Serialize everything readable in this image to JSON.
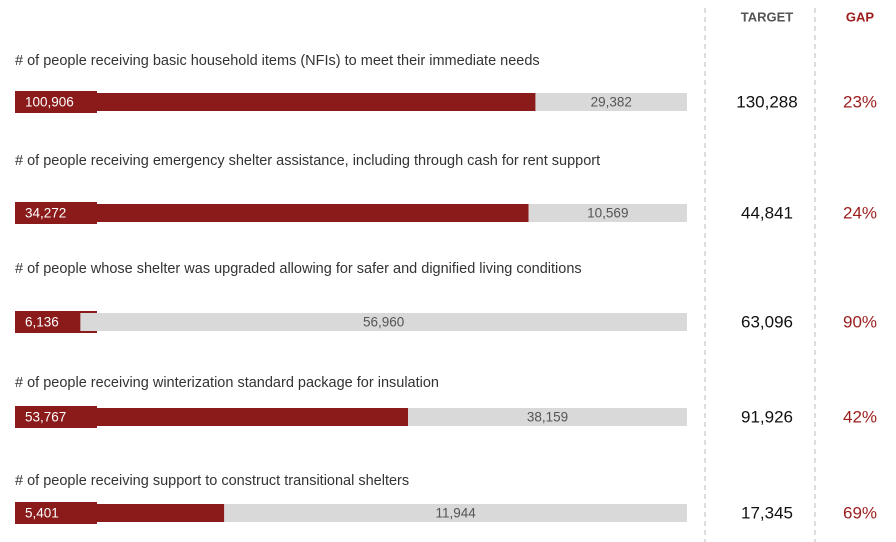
{
  "chart_data": {
    "type": "bar",
    "stacked": true,
    "categories": [
      "# of people receiving basic household items (NFIs) to meet their immediate needs",
      "# of people receiving emergency shelter assistance, including through cash for rent support",
      "# of people whose shelter was upgraded allowing for safer and dignified living conditions",
      "# of people receiving winterization standard package for insulation",
      "# of people receiving support to construct transitional shelters"
    ],
    "series": [
      {
        "color": "#8b1a1a",
        "label_color": "#ffffff",
        "values": [
          100906,
          34272,
          6136,
          53767,
          5401
        ],
        "value_labels": [
          "100,906",
          "34,272",
          "6,136",
          "53,767",
          "5,401"
        ]
      },
      {
        "color": "#d9d9d9",
        "label_color": "#555555",
        "values": [
          29382,
          10569,
          56960,
          38159,
          11944
        ],
        "value_labels": [
          "29,382",
          "10,569",
          "56,960",
          "38,159",
          "11,944"
        ]
      }
    ],
    "columns": [
      {
        "header": "TARGET",
        "header_color": "#555555",
        "color": "#111111",
        "values": [
          130288,
          44841,
          63096,
          91926,
          17345
        ],
        "value_labels": [
          "130,288",
          "44,841",
          "63,096",
          "91,926",
          "17,345"
        ]
      },
      {
        "header": "GAP",
        "header_color": "#9b1c1c",
        "color": "#9b1c1c",
        "values": [
          23,
          24,
          90,
          42,
          69
        ],
        "value_labels": [
          "23%",
          "24%",
          "90%",
          "42%",
          "69%"
        ]
      }
    ]
  }
}
